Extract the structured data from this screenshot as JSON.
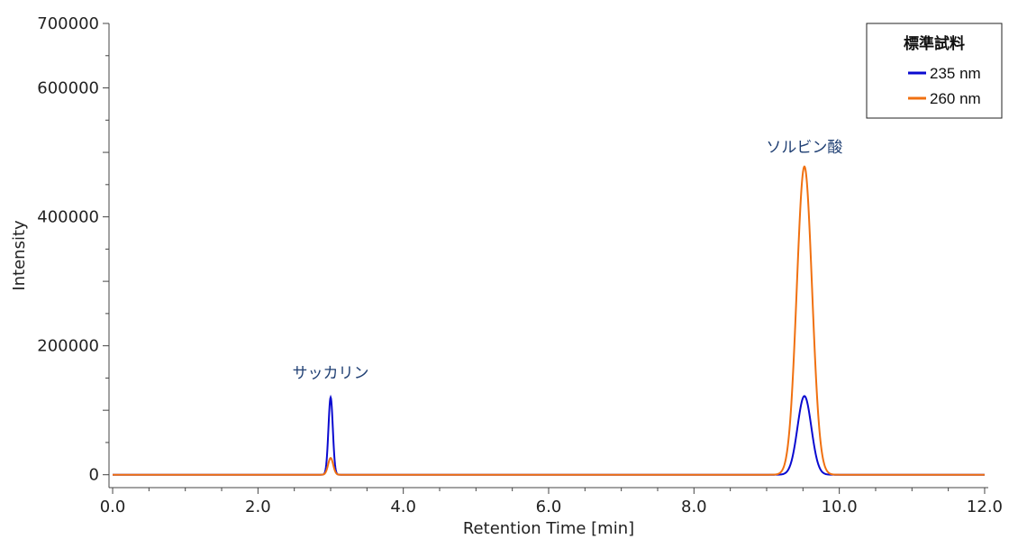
{
  "chart_data": {
    "type": "line",
    "xlabel": "Retention Time [min]",
    "ylabel": "Intensity",
    "xlim": [
      -0.05,
      12.05
    ],
    "ylim": [
      -20000,
      700000
    ],
    "x_ticks": [
      "0.0",
      "2.0",
      "4.0",
      "6.0",
      "8.0",
      "10.0",
      "12.0"
    ],
    "y_ticks": [
      "0",
      "200000",
      "400000",
      "600000",
      "700000"
    ],
    "legend": {
      "title": "標準試料",
      "position": "top-right"
    },
    "series": [
      {
        "name": "235 nm",
        "color": "#0a0ad0",
        "peaks": [
          {
            "rt": 3.0,
            "height": 120000,
            "sigma": 0.03
          },
          {
            "rt": 9.52,
            "height": 122000,
            "sigma": 0.095
          }
        ]
      },
      {
        "name": "260 nm",
        "color": "#f07010",
        "peaks": [
          {
            "rt": 3.0,
            "height": 26000,
            "sigma": 0.035
          },
          {
            "rt": 9.52,
            "height": 478000,
            "sigma": 0.105
          }
        ]
      }
    ],
    "annotations": [
      {
        "text": "サッカリン",
        "x": 3.0,
        "y": 150000
      },
      {
        "text": "ソルビン酸",
        "x": 9.52,
        "y": 500000
      }
    ]
  }
}
